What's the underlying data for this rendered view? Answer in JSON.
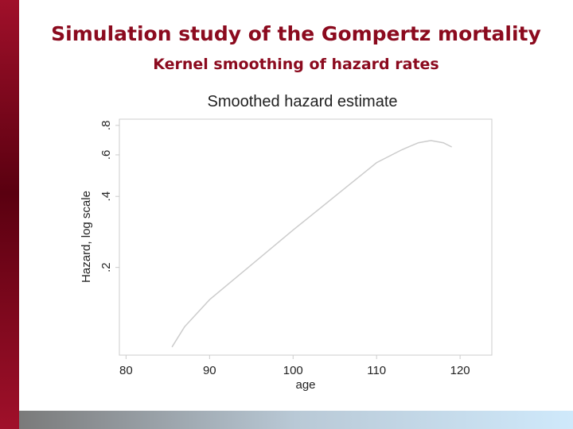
{
  "title": "Simulation study of the Gompertz mortality",
  "subtitle": "Kernel smoothing of hazard rates",
  "chart_data": {
    "type": "line",
    "title": "Smoothed hazard estimate",
    "x_label": "age",
    "y_label": "Hazard, log scale",
    "x": [
      85.5,
      87,
      90,
      95,
      100,
      105,
      110,
      113,
      115,
      116.5,
      118,
      119
    ],
    "series": [
      {
        "name": "Smoothed hazard",
        "color": "#cccccc",
        "values": [
          0.092,
          0.112,
          0.146,
          0.205,
          0.288,
          0.4,
          0.556,
          0.63,
          0.675,
          0.69,
          0.675,
          0.648
        ]
      }
    ],
    "xlim": [
      79.2,
      123.8
    ],
    "xticks": [
      80,
      90,
      100,
      110,
      120
    ],
    "ylim": [
      0.085,
      0.85
    ],
    "ylog": true,
    "yticks": [
      {
        "value": 0.2,
        "label": ".2"
      },
      {
        "value": 0.4,
        "label": ".4"
      },
      {
        "value": 0.6,
        "label": ".6"
      },
      {
        "value": 0.8,
        "label": ".8"
      }
    ]
  }
}
